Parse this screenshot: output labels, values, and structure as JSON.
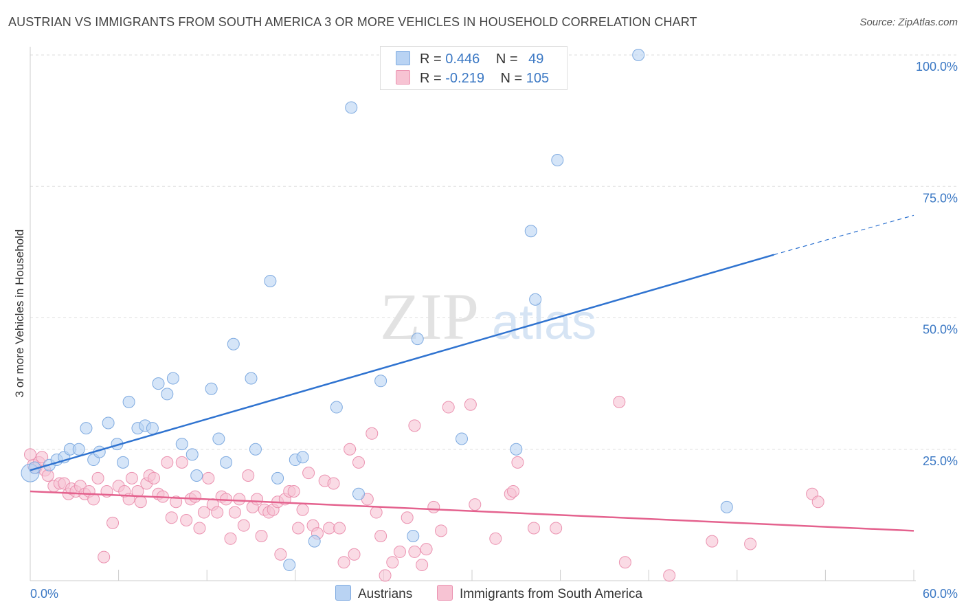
{
  "title": "AUSTRIAN VS IMMIGRANTS FROM SOUTH AMERICA 3 OR MORE VEHICLES IN HOUSEHOLD CORRELATION CHART",
  "source": "Source: ZipAtlas.com",
  "watermark": {
    "zip": "ZIP",
    "atlas": "atlas"
  },
  "colors": {
    "blue_fill": "#b9d3f3",
    "blue_stroke": "#7eaae0",
    "blue_line": "#2f73d0",
    "pink_fill": "#f7c3d3",
    "pink_stroke": "#eb92b0",
    "pink_line": "#e4628e",
    "grid": "#dddddd",
    "axis_label": "#3b78c4"
  },
  "legend": {
    "rows": [
      {
        "r_label": "R =",
        "r_value": "0.446",
        "n_label": "N =",
        "n_value": "49"
      },
      {
        "r_label": "R =",
        "r_value": "-0.219",
        "n_label": "N =",
        "n_value": "105"
      }
    ]
  },
  "bottom_legend": {
    "series1": "Austrians",
    "series2": "Immigrants from South America"
  },
  "chart_data": {
    "type": "scatter",
    "title": "AUSTRIAN VS IMMIGRANTS FROM SOUTH AMERICA 3 OR MORE VEHICLES IN HOUSEHOLD CORRELATION CHART",
    "xlabel": "",
    "ylabel": "3 or more Vehicles in Household",
    "xlim": [
      0,
      60
    ],
    "ylim": [
      0,
      102
    ],
    "x_tick_labels": [
      "0.0%",
      "60.0%"
    ],
    "y_tick_labels": [
      "100.0%",
      "75.0%",
      "50.0%",
      "25.0%"
    ],
    "y_ticks": [
      100,
      75,
      50,
      25
    ],
    "grid": "horizontal dashed",
    "legend_position": "top-center",
    "series": [
      {
        "name": "Austrians",
        "r": 0.446,
        "n": 49,
        "trend": {
          "x_start": 0,
          "y_start": 21.0,
          "x_end": 50.5,
          "y_end": 62.0,
          "dashed_to_x": 60,
          "dashed_to_y": 69.5
        },
        "points": [
          [
            0.0,
            20.5
          ],
          [
            0.3,
            21.5
          ],
          [
            1.3,
            22.0
          ],
          [
            1.8,
            23.0
          ],
          [
            2.3,
            23.5
          ],
          [
            2.7,
            25.0
          ],
          [
            3.3,
            25.0
          ],
          [
            3.8,
            29.0
          ],
          [
            4.3,
            23.0
          ],
          [
            4.7,
            24.5
          ],
          [
            5.3,
            30.0
          ],
          [
            5.9,
            26.0
          ],
          [
            6.3,
            22.5
          ],
          [
            6.7,
            34.0
          ],
          [
            7.3,
            29.0
          ],
          [
            7.8,
            29.5
          ],
          [
            8.3,
            29.0
          ],
          [
            8.7,
            37.5
          ],
          [
            9.3,
            35.5
          ],
          [
            9.7,
            38.5
          ],
          [
            10.3,
            26.0
          ],
          [
            11.0,
            24.0
          ],
          [
            11.3,
            20.0
          ],
          [
            12.3,
            36.5
          ],
          [
            12.8,
            27.0
          ],
          [
            13.3,
            22.5
          ],
          [
            13.8,
            45.0
          ],
          [
            15.0,
            38.5
          ],
          [
            15.3,
            25.0
          ],
          [
            16.8,
            19.5
          ],
          [
            16.3,
            57.0
          ],
          [
            17.6,
            3.0
          ],
          [
            18.0,
            23.0
          ],
          [
            18.5,
            23.5
          ],
          [
            19.3,
            7.5
          ],
          [
            20.8,
            33.0
          ],
          [
            21.8,
            90.0
          ],
          [
            22.3,
            16.5
          ],
          [
            23.8,
            38.0
          ],
          [
            26.0,
            8.5
          ],
          [
            26.3,
            46.0
          ],
          [
            27.3,
            100.0
          ],
          [
            29.3,
            27.0
          ],
          [
            33.0,
            25.0
          ],
          [
            34.0,
            66.5
          ],
          [
            34.3,
            53.5
          ],
          [
            35.8,
            80.0
          ],
          [
            41.3,
            100.0
          ],
          [
            47.3,
            14.0
          ]
        ]
      },
      {
        "name": "Immigrants from South America",
        "r": -0.219,
        "n": 105,
        "trend": {
          "x_start": 0,
          "y_start": 17.0,
          "x_end": 60,
          "y_end": 9.5
        },
        "points": [
          [
            0.2,
            22.0
          ],
          [
            0.4,
            21.5
          ],
          [
            0.6,
            22.5
          ],
          [
            1.0,
            21.0
          ],
          [
            1.2,
            20.0
          ],
          [
            1.6,
            18.0
          ],
          [
            2.0,
            18.5
          ],
          [
            2.3,
            18.5
          ],
          [
            2.6,
            16.5
          ],
          [
            2.8,
            17.5
          ],
          [
            3.1,
            17.0
          ],
          [
            3.4,
            18.0
          ],
          [
            3.7,
            16.5
          ],
          [
            4.0,
            17.0
          ],
          [
            4.3,
            15.5
          ],
          [
            4.6,
            19.5
          ],
          [
            5.0,
            4.5
          ],
          [
            5.2,
            17.0
          ],
          [
            5.6,
            11.0
          ],
          [
            6.0,
            18.0
          ],
          [
            6.4,
            17.0
          ],
          [
            6.7,
            15.5
          ],
          [
            6.9,
            19.5
          ],
          [
            7.3,
            17.0
          ],
          [
            7.5,
            15.0
          ],
          [
            7.9,
            18.5
          ],
          [
            8.1,
            20.0
          ],
          [
            8.4,
            19.5
          ],
          [
            8.7,
            16.5
          ],
          [
            9.0,
            16.0
          ],
          [
            9.3,
            22.5
          ],
          [
            9.6,
            12.0
          ],
          [
            9.9,
            15.0
          ],
          [
            10.3,
            22.5
          ],
          [
            10.6,
            11.5
          ],
          [
            10.9,
            15.5
          ],
          [
            11.2,
            16.0
          ],
          [
            11.5,
            10.0
          ],
          [
            11.8,
            13.0
          ],
          [
            12.1,
            19.5
          ],
          [
            12.4,
            14.5
          ],
          [
            12.7,
            13.0
          ],
          [
            13.0,
            16.0
          ],
          [
            13.3,
            15.5
          ],
          [
            13.6,
            8.0
          ],
          [
            13.9,
            13.0
          ],
          [
            14.2,
            15.5
          ],
          [
            14.5,
            10.5
          ],
          [
            14.8,
            20.0
          ],
          [
            15.1,
            14.0
          ],
          [
            15.4,
            15.5
          ],
          [
            15.7,
            8.5
          ],
          [
            15.9,
            13.5
          ],
          [
            16.2,
            13.0
          ],
          [
            16.5,
            13.5
          ],
          [
            16.8,
            15.0
          ],
          [
            17.0,
            5.0
          ],
          [
            17.3,
            15.5
          ],
          [
            17.6,
            17.0
          ],
          [
            17.9,
            17.0
          ],
          [
            18.2,
            10.0
          ],
          [
            18.5,
            13.5
          ],
          [
            18.9,
            20.5
          ],
          [
            19.2,
            10.5
          ],
          [
            19.5,
            9.0
          ],
          [
            20.0,
            19.0
          ],
          [
            20.3,
            10.0
          ],
          [
            20.6,
            18.5
          ],
          [
            21.0,
            10.0
          ],
          [
            21.3,
            3.5
          ],
          [
            21.7,
            25.0
          ],
          [
            22.0,
            5.0
          ],
          [
            22.3,
            22.5
          ],
          [
            22.9,
            15.5
          ],
          [
            23.2,
            28.0
          ],
          [
            23.5,
            13.0
          ],
          [
            23.8,
            8.5
          ],
          [
            24.1,
            1.0
          ],
          [
            24.6,
            3.5
          ],
          [
            25.1,
            5.5
          ],
          [
            25.6,
            12.0
          ],
          [
            26.1,
            5.5
          ],
          [
            26.6,
            3.0
          ],
          [
            26.1,
            29.5
          ],
          [
            26.9,
            6.0
          ],
          [
            27.4,
            14.0
          ],
          [
            27.9,
            9.5
          ],
          [
            28.4,
            33.0
          ],
          [
            29.9,
            33.5
          ],
          [
            30.2,
            14.5
          ],
          [
            31.6,
            8.0
          ],
          [
            32.6,
            16.5
          ],
          [
            32.8,
            17.0
          ],
          [
            33.1,
            22.5
          ],
          [
            34.2,
            10.0
          ],
          [
            35.7,
            10.0
          ],
          [
            40.0,
            34.0
          ],
          [
            40.4,
            3.5
          ],
          [
            43.4,
            1.0
          ],
          [
            46.3,
            7.5
          ],
          [
            48.9,
            7.0
          ],
          [
            53.1,
            16.5
          ],
          [
            53.5,
            15.0
          ],
          [
            0.0,
            24.0
          ],
          [
            0.8,
            23.5
          ]
        ]
      }
    ]
  }
}
